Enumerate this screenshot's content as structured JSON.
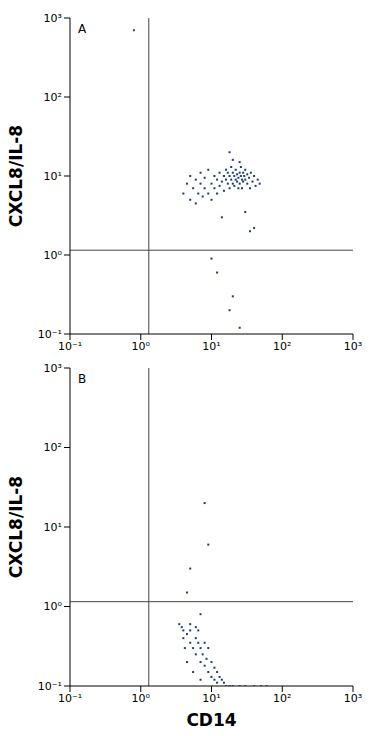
{
  "chart_data": [
    {
      "type": "scatter",
      "title": "A",
      "y_label": "CXCL8/IL-8",
      "log": true,
      "color": "#1f3b73",
      "marker": "square",
      "xlim": [
        0.1,
        1000
      ],
      "ylim": [
        0.1,
        1000
      ],
      "xticks": [
        {
          "value": 0.1,
          "label": "10⁻¹"
        },
        {
          "value": 1,
          "label": "10⁰"
        },
        {
          "value": 10,
          "label": "10¹"
        },
        {
          "value": 100,
          "label": "10²"
        },
        {
          "value": 1000,
          "label": "10³"
        }
      ],
      "yticks": [
        {
          "value": 0.1,
          "label": "10⁻¹"
        },
        {
          "value": 1,
          "label": "10⁰"
        },
        {
          "value": 10,
          "label": "10¹"
        },
        {
          "value": 100,
          "label": "10²"
        },
        {
          "value": 1000,
          "label": "10³"
        }
      ],
      "gate": {
        "x": 1.3,
        "y": 1.15
      },
      "points": [
        [
          4,
          6
        ],
        [
          4.5,
          8
        ],
        [
          5,
          5
        ],
        [
          5,
          10
        ],
        [
          5.5,
          7
        ],
        [
          6,
          9
        ],
        [
          6,
          4.5
        ],
        [
          6.5,
          6
        ],
        [
          7,
          8
        ],
        [
          7,
          11
        ],
        [
          7.5,
          5.5
        ],
        [
          8,
          7
        ],
        [
          8,
          9.5
        ],
        [
          9,
          6
        ],
        [
          9,
          12
        ],
        [
          10,
          8
        ],
        [
          10,
          5
        ],
        [
          11,
          7
        ],
        [
          11,
          10
        ],
        [
          12,
          9
        ],
        [
          12,
          6
        ],
        [
          13,
          11
        ],
        [
          13,
          7.5
        ],
        [
          14,
          8.5
        ],
        [
          15,
          10
        ],
        [
          15,
          6.5
        ],
        [
          16,
          9
        ],
        [
          16,
          12
        ],
        [
          17,
          8
        ],
        [
          17,
          11
        ],
        [
          18,
          10
        ],
        [
          18,
          7
        ],
        [
          19,
          9
        ],
        [
          19,
          13
        ],
        [
          20,
          8
        ],
        [
          20,
          11
        ],
        [
          21,
          10
        ],
        [
          21,
          7.5
        ],
        [
          22,
          9
        ],
        [
          22,
          12
        ],
        [
          23,
          8.5
        ],
        [
          23,
          10.5
        ],
        [
          24,
          9.5
        ],
        [
          24,
          7
        ],
        [
          25,
          11
        ],
        [
          25,
          8
        ],
        [
          26,
          10
        ],
        [
          26,
          13
        ],
        [
          27,
          9
        ],
        [
          27,
          7
        ],
        [
          28,
          11
        ],
        [
          28,
          8.5
        ],
        [
          29,
          10
        ],
        [
          30,
          9
        ],
        [
          30,
          12
        ],
        [
          32,
          8
        ],
        [
          32,
          10.5
        ],
        [
          34,
          9.5
        ],
        [
          35,
          7
        ],
        [
          36,
          11
        ],
        [
          38,
          8.5
        ],
        [
          40,
          10
        ],
        [
          42,
          7.5
        ],
        [
          45,
          9
        ],
        [
          48,
          8
        ],
        [
          20,
          16
        ],
        [
          18,
          20
        ],
        [
          25,
          15
        ],
        [
          14,
          3
        ],
        [
          30,
          3.5
        ],
        [
          40,
          2.2
        ],
        [
          35,
          2
        ],
        [
          10,
          0.9
        ],
        [
          12,
          0.6
        ],
        [
          20,
          0.3
        ],
        [
          18,
          0.2
        ],
        [
          25,
          0.12
        ],
        [
          0.8,
          700
        ]
      ]
    },
    {
      "type": "scatter",
      "title": "B",
      "x_label": "CD14",
      "y_label": "CXCL8/IL-8",
      "log": true,
      "color": "#1f3b73",
      "marker": "square",
      "xlim": [
        0.1,
        1000
      ],
      "ylim": [
        0.1,
        1000
      ],
      "xticks": [
        {
          "value": 0.1,
          "label": "10⁻¹"
        },
        {
          "value": 1,
          "label": "10⁰"
        },
        {
          "value": 10,
          "label": "10¹"
        },
        {
          "value": 100,
          "label": "10²"
        },
        {
          "value": 1000,
          "label": "10³"
        }
      ],
      "yticks": [
        {
          "value": 0.1,
          "label": "10⁻¹"
        },
        {
          "value": 1,
          "label": "10⁰"
        },
        {
          "value": 10,
          "label": "10¹"
        },
        {
          "value": 100,
          "label": "10²"
        },
        {
          "value": 1000,
          "label": "10³"
        }
      ],
      "gate": {
        "x": 1.3,
        "y": 1.15
      },
      "points": [
        [
          4,
          0.5
        ],
        [
          4,
          0.4
        ],
        [
          4.5,
          0.45
        ],
        [
          5,
          0.35
        ],
        [
          4.2,
          0.3
        ],
        [
          5,
          0.5
        ],
        [
          5.5,
          0.3
        ],
        [
          6,
          0.4
        ],
        [
          6,
          0.25
        ],
        [
          6.5,
          0.35
        ],
        [
          7,
          0.3
        ],
        [
          7,
          0.2
        ],
        [
          7.5,
          0.25
        ],
        [
          8,
          0.35
        ],
        [
          8,
          0.18
        ],
        [
          8.5,
          0.22
        ],
        [
          9,
          0.3
        ],
        [
          9,
          0.15
        ],
        [
          10,
          0.2
        ],
        [
          10,
          0.13
        ],
        [
          11,
          0.17
        ],
        [
          11,
          0.12
        ],
        [
          12,
          0.15
        ],
        [
          12,
          0.11
        ],
        [
          13,
          0.13
        ],
        [
          14,
          0.12
        ],
        [
          15,
          0.11
        ],
        [
          16,
          0.1
        ],
        [
          18,
          0.1
        ],
        [
          20,
          0.1
        ],
        [
          25,
          0.1
        ],
        [
          30,
          0.1
        ],
        [
          40,
          0.1
        ],
        [
          50,
          0.1
        ],
        [
          60,
          0.1
        ],
        [
          5,
          0.6
        ],
        [
          3.8,
          0.55
        ],
        [
          6,
          0.55
        ],
        [
          4.5,
          0.2
        ],
        [
          5.5,
          0.15
        ],
        [
          7,
          0.12
        ],
        [
          6.5,
          0.5
        ],
        [
          8,
          20
        ],
        [
          9,
          6
        ],
        [
          5,
          3
        ],
        [
          4.5,
          1.5
        ],
        [
          7,
          0.8
        ],
        [
          3.5,
          0.6
        ]
      ]
    }
  ]
}
